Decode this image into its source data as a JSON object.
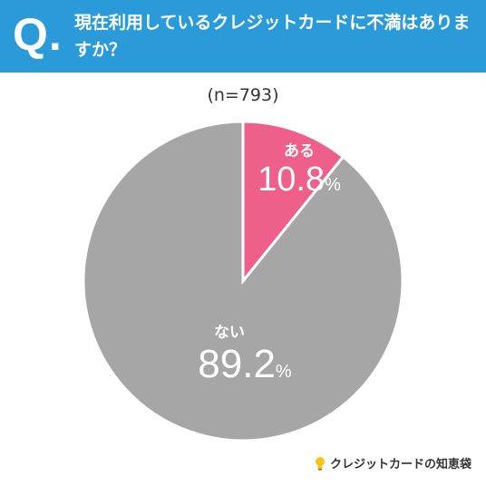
{
  "header": {
    "q_mark": "Q.",
    "question": "現在利用しているクレジットカードに不満はありますか？",
    "bg_color": "#2b9ad8"
  },
  "sample": "(n=793)",
  "chart_data": {
    "type": "pie",
    "title": "",
    "slices": [
      {
        "label": "ある",
        "value": 10.8,
        "color": "#ee5f8a"
      },
      {
        "label": "ない",
        "value": 89.2,
        "color": "#a6a6a6"
      }
    ],
    "unit": "%"
  },
  "labels": {
    "yes": {
      "name": "ある",
      "value": "10.8",
      "unit": "%"
    },
    "no": {
      "name": "ない",
      "value": "89.2",
      "unit": "%"
    }
  },
  "source": {
    "text": "クレジットカードの知恵袋",
    "icon": "lightbulb-icon"
  }
}
